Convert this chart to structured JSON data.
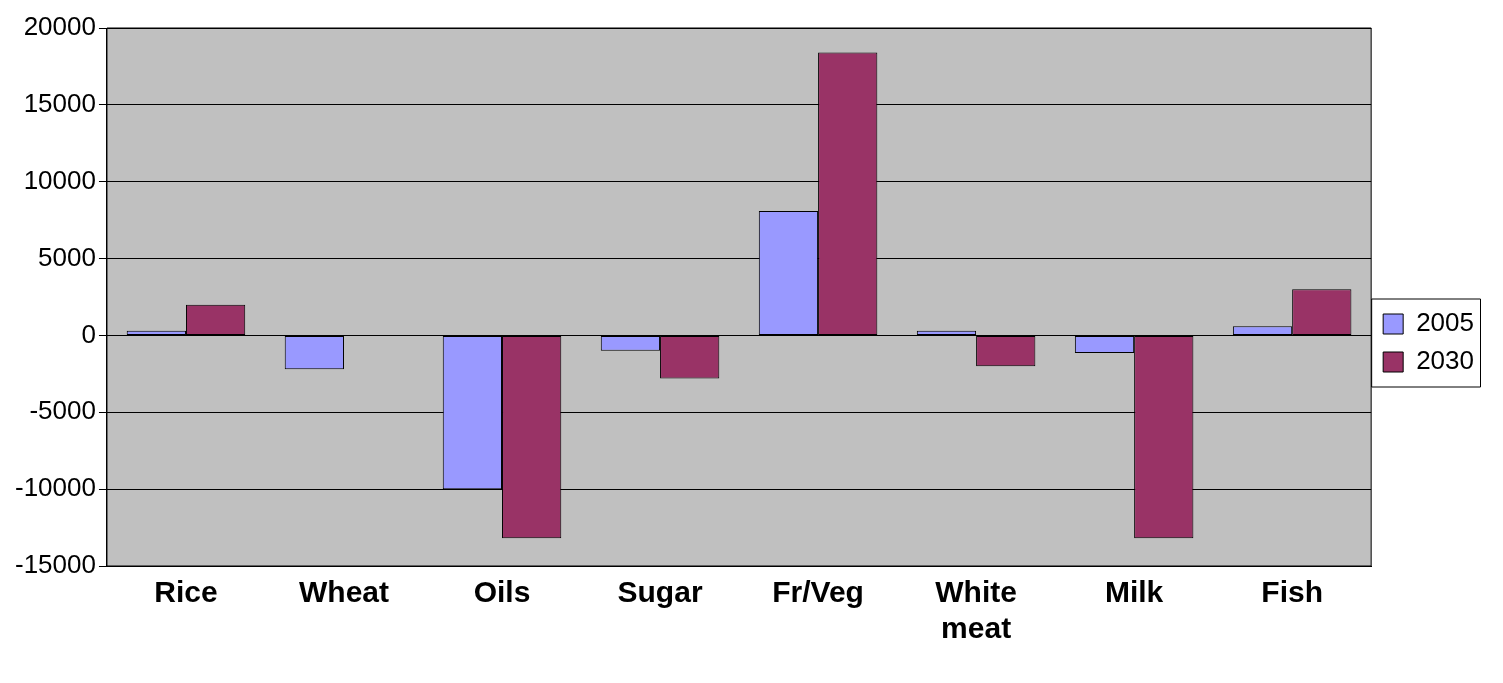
{
  "chart_data": {
    "type": "bar",
    "categories": [
      "Rice",
      "Wheat",
      "Oils",
      "Sugar",
      "Fr/Veg",
      "White meat",
      "Milk",
      "Fish"
    ],
    "series": [
      {
        "name": "2005",
        "color": "#9999ff",
        "values": [
          300,
          -2200,
          -10000,
          -1000,
          8100,
          300,
          -1150,
          600
        ]
      },
      {
        "name": "2030",
        "color": "#993366",
        "values": [
          2000,
          0,
          -13200,
          -2800,
          18400,
          -2000,
          -13200,
          3000
        ]
      }
    ],
    "ylim": [
      -15000,
      20000
    ],
    "yticks": [
      -15000,
      -10000,
      -5000,
      0,
      5000,
      10000,
      15000,
      20000
    ],
    "grid": "y",
    "legend": "right"
  }
}
